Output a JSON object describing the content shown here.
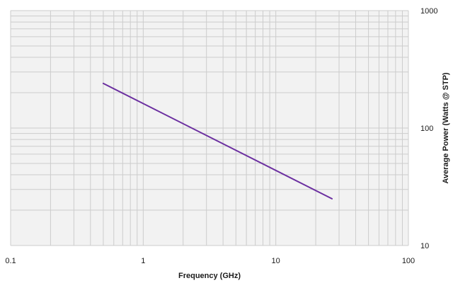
{
  "chart_data": {
    "type": "line",
    "title": "",
    "xlabel": "Frequency (GHz)",
    "ylabel": "Average Power (Watts @ STP)",
    "x_scale": "log",
    "y_scale": "log",
    "xlim": [
      0.1,
      100
    ],
    "ylim": [
      10,
      1000
    ],
    "x_ticks": [
      "0.1",
      "1",
      "10",
      "100"
    ],
    "y_ticks": [
      "10",
      "100",
      "1000"
    ],
    "grid": true,
    "legend": "none",
    "series": [
      {
        "color": "#6b2fa0",
        "x": [
          0.5,
          26.5
        ],
        "y": [
          240,
          25
        ]
      }
    ]
  },
  "colors": {
    "plot_background": "#f2f2f2",
    "grid": "#cccccc",
    "line": "#6b2fa0"
  }
}
